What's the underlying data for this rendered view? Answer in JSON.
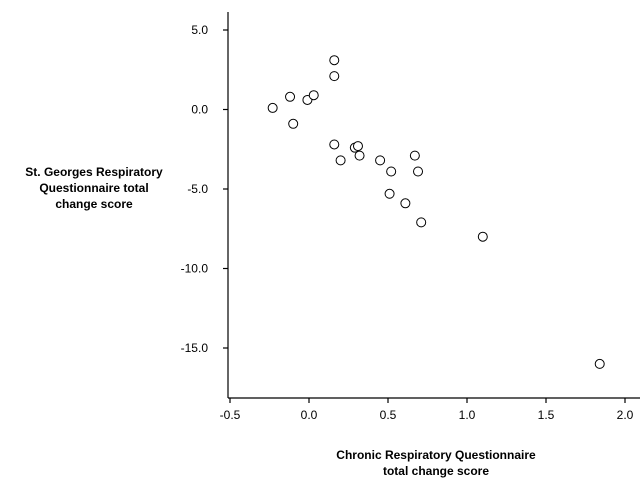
{
  "chart_data": {
    "type": "scatter",
    "title": "",
    "xlabel": [
      "Chronic Respiratory Questionnaire",
      "total change score"
    ],
    "ylabel": [
      "St. Georges Respiratory",
      "Questionnaire total",
      "change score"
    ],
    "xlim": [
      -0.55,
      2.05
    ],
    "ylim": [
      -18,
      6
    ],
    "x_ticks": [
      -0.5,
      0.0,
      0.5,
      1.0,
      1.5,
      2.0
    ],
    "x_tick_labels": [
      "-0.5",
      "0.0",
      "0.5",
      "1.0",
      "1.5",
      "2.0"
    ],
    "y_ticks": [
      5,
      0,
      -5,
      -10,
      -15
    ],
    "y_tick_labels": [
      "5.0",
      "0.0",
      "-5.0",
      "-10.0",
      "-15.0"
    ],
    "grid": false,
    "legend": "none",
    "marker": "open-circle",
    "series": [
      {
        "points": [
          {
            "x": -0.23,
            "y": 0.1
          },
          {
            "x": -0.12,
            "y": 0.8
          },
          {
            "x": -0.1,
            "y": -0.9
          },
          {
            "x": -0.01,
            "y": 0.6
          },
          {
            "x": 0.03,
            "y": 0.9
          },
          {
            "x": 0.16,
            "y": 3.1
          },
          {
            "x": 0.16,
            "y": 2.1
          },
          {
            "x": 0.16,
            "y": -2.2
          },
          {
            "x": 0.2,
            "y": -3.2
          },
          {
            "x": 0.29,
            "y": -2.4
          },
          {
            "x": 0.31,
            "y": -2.3
          },
          {
            "x": 0.32,
            "y": -2.9
          },
          {
            "x": 0.45,
            "y": -3.2
          },
          {
            "x": 0.51,
            "y": -5.3
          },
          {
            "x": 0.52,
            "y": -3.9
          },
          {
            "x": 0.61,
            "y": -5.9
          },
          {
            "x": 0.67,
            "y": -2.9
          },
          {
            "x": 0.69,
            "y": -3.9
          },
          {
            "x": 0.71,
            "y": -7.1
          },
          {
            "x": 1.1,
            "y": -8.0
          },
          {
            "x": 1.84,
            "y": -16.0
          }
        ]
      }
    ]
  }
}
